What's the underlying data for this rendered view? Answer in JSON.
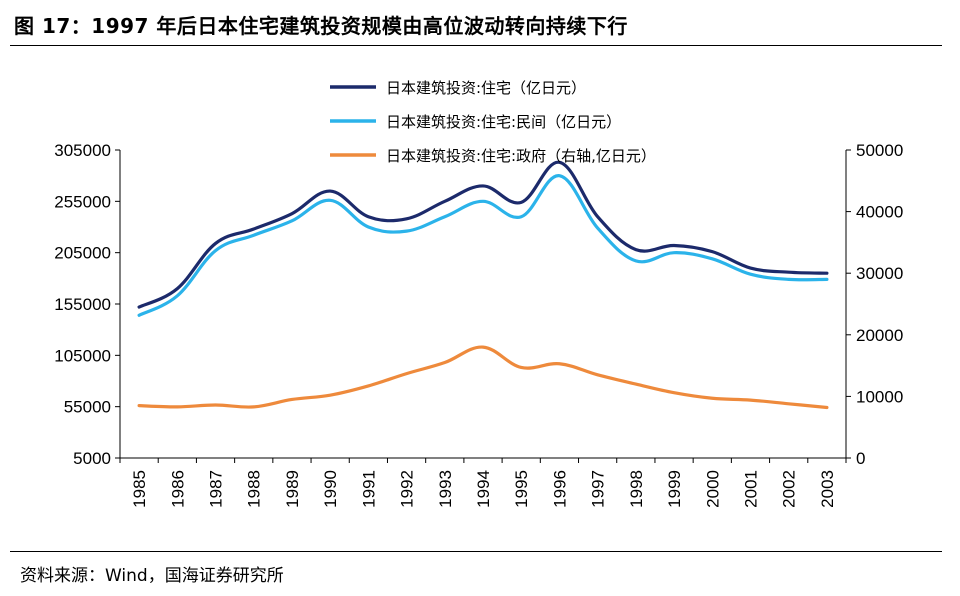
{
  "header": {
    "title": "图 17：1997 年后日本住宅建筑投资规模由高位波动转向持续下行"
  },
  "footer": {
    "source": "资料来源：Wind，国海证券研究所"
  },
  "colors": {
    "series_total": "#1c2a6b",
    "series_private": "#2bb3ea",
    "series_government": "#ee8a3c",
    "axis": "#000000"
  },
  "chart_data": {
    "type": "line",
    "categories": [
      "1985",
      "1986",
      "1987",
      "1988",
      "1989",
      "1990",
      "1991",
      "1992",
      "1993",
      "1994",
      "1995",
      "1996",
      "1997",
      "1998",
      "1999",
      "2000",
      "2001",
      "2002",
      "2003"
    ],
    "series": [
      {
        "name": "日本建筑投资:住宅（亿日元）",
        "axis": "left",
        "color": "#1c2a6b",
        "values": [
          152000,
          170000,
          214000,
          228000,
          243000,
          265000,
          240000,
          238000,
          255000,
          270000,
          254000,
          293000,
          240000,
          208000,
          212000,
          206000,
          190000,
          186000,
          185000
        ]
      },
      {
        "name": "日本建筑投资:住宅:民间（亿日元）",
        "axis": "left",
        "color": "#2bb3ea",
        "values": [
          144000,
          163000,
          207000,
          222000,
          236000,
          256000,
          230000,
          226000,
          240000,
          255000,
          240000,
          280000,
          229000,
          197000,
          205000,
          199000,
          184000,
          179000,
          179000
        ]
      },
      {
        "name": "日本建筑投资:住宅:政府（右轴,亿日元）",
        "axis": "right",
        "color": "#ee8a3c",
        "values": [
          8500,
          8300,
          8600,
          8300,
          9500,
          10200,
          11700,
          13700,
          15500,
          18000,
          14700,
          15300,
          13500,
          12000,
          10600,
          9700,
          9400,
          8800,
          8200
        ]
      }
    ],
    "y_left": {
      "ticks": [
        5000,
        55000,
        105000,
        155000,
        205000,
        255000,
        305000
      ],
      "tick_labels": [
        "5000",
        "55000",
        "105000",
        "155000",
        "205000",
        "255000",
        "305000"
      ],
      "range": [
        5000,
        305000
      ]
    },
    "y_right": {
      "ticks": [
        0,
        10000,
        20000,
        30000,
        40000,
        50000
      ],
      "tick_labels": [
        "0",
        "10000",
        "20000",
        "30000",
        "40000",
        "50000"
      ],
      "range": [
        0,
        50000
      ]
    },
    "legend_position": "top-center",
    "grid": false
  }
}
